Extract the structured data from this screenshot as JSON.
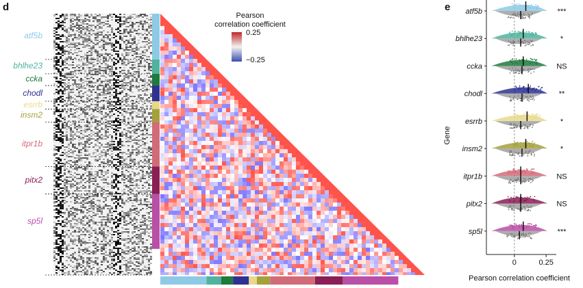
{
  "panel_d": {
    "letter": "d",
    "colorbar": {
      "title_line1": "Pearson",
      "title_line2": "correlation coefficient",
      "max_label": "0.25",
      "min_label": "−0.25",
      "max": 0.25,
      "min": -0.25
    },
    "groups": [
      {
        "name": "atf5b",
        "color": "#8ecae6",
        "fraction": 0.175
      },
      {
        "name": "bhlhe23",
        "color": "#4fb39e",
        "fraction": 0.055
      },
      {
        "name": "ccka",
        "color": "#1f7a3e",
        "fraction": 0.045
      },
      {
        "name": "chodl",
        "color": "#2e3192",
        "fraction": 0.06
      },
      {
        "name": "esrrb",
        "color": "#e8d98a",
        "fraction": 0.03
      },
      {
        "name": "insm2",
        "color": "#a5a03c",
        "fraction": 0.05
      },
      {
        "name": "itpr1b",
        "color": "#d26b78",
        "fraction": 0.17
      },
      {
        "name": "pitx2",
        "color": "#8a1f55",
        "fraction": 0.105
      },
      {
        "name": "sp5l",
        "color": "#b94fa6",
        "fraction": 0.21
      }
    ]
  },
  "panel_e": {
    "letter": "e",
    "chart_data": {
      "type": "scatter",
      "title": "",
      "xlabel": "Pearson correlation coefficient",
      "ylabel": "Gene",
      "xlim": [
        -0.22,
        0.33
      ],
      "xticks": [
        0,
        0.25
      ],
      "xtick_labels": [
        "0",
        "0.25"
      ],
      "reference_line_x": 0,
      "categories": [
        "atf5b",
        "bhlhe23",
        "ccka",
        "chodl",
        "esrrb",
        "insm2",
        "itpr1b",
        "pitx2",
        "sp5l"
      ],
      "colors": [
        "#8ecae6",
        "#4fb39e",
        "#1f7a3e",
        "#2e3192",
        "#e8d98a",
        "#a5a03c",
        "#d26b78",
        "#8a1f55",
        "#b94fa6"
      ],
      "series": [
        {
          "name": "",
          "values": [
            0.09,
            0.07,
            0.07,
            0.11,
            0.1,
            0.09,
            0.05,
            0.05,
            0.07
          ]
        },
        {
          "name": "",
          "values": [
            0.05,
            0.05,
            0.06,
            0.06,
            0.05,
            0.06,
            0.05,
            0.05,
            0.04
          ]
        }
      ],
      "significance": [
        "***",
        "*",
        "NS",
        "**",
        "*",
        "*",
        "NS",
        "NS",
        "***"
      ]
    }
  }
}
